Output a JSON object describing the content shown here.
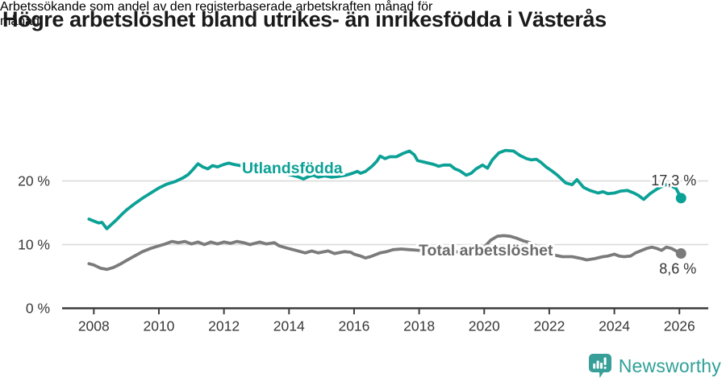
{
  "footer": {
    "brand": "Newsworthy"
  },
  "colors": {
    "teal": "#0CA196",
    "gray": "#7B7B7B",
    "teal_label": "#0CA196",
    "gray_label": "#6B6B6B",
    "grid": "#D8D8D8",
    "axis": "#3D3D3D",
    "tick_text": "#383838",
    "value_text": "#333333",
    "logo": "#379F98"
  },
  "chart_data": {
    "type": "line",
    "title": "Högre arbetslöshet bland utrikes- än inrikesfödda i Västerås",
    "subtitle_lines": [
      "Arbetssökande som andel av den registerbaserade arbetskraften månad för",
      "månad."
    ],
    "xlabel": "",
    "ylabel": "",
    "unit": "%",
    "xlim": [
      2007.0,
      2026.9
    ],
    "ylim": [
      0,
      27
    ],
    "grid": "horizontal",
    "legend_position": "inline-labels",
    "yticks": [
      {
        "value": 0,
        "label": "0 %"
      },
      {
        "value": 10,
        "label": "10 %"
      },
      {
        "value": 20,
        "label": "20 %"
      }
    ],
    "xticks": [
      {
        "value": 2008,
        "label": "2008"
      },
      {
        "value": 2010,
        "label": "2010"
      },
      {
        "value": 2012,
        "label": "2012"
      },
      {
        "value": 2014,
        "label": "2014"
      },
      {
        "value": 2016,
        "label": "2016"
      },
      {
        "value": 2018,
        "label": "2018"
      },
      {
        "value": 2020,
        "label": "2020"
      },
      {
        "value": 2022,
        "label": "2022"
      },
      {
        "value": 2024,
        "label": "2024"
      },
      {
        "value": 2026,
        "label": "2026"
      }
    ],
    "series": [
      {
        "id": "total",
        "name": "Total arbetslöshet",
        "color": "gray",
        "label_color": "gray_label",
        "label_anchor": [
          2020.05,
          8.3
        ],
        "end_label": "8,6 %",
        "end_label_side": "below",
        "points": [
          [
            2007.85,
            7.0
          ],
          [
            2008.0,
            6.8
          ],
          [
            2008.2,
            6.3
          ],
          [
            2008.4,
            6.1
          ],
          [
            2008.6,
            6.4
          ],
          [
            2008.8,
            6.9
          ],
          [
            2009.0,
            7.5
          ],
          [
            2009.25,
            8.2
          ],
          [
            2009.5,
            8.9
          ],
          [
            2009.75,
            9.4
          ],
          [
            2010.0,
            9.8
          ],
          [
            2010.2,
            10.1
          ],
          [
            2010.4,
            10.5
          ],
          [
            2010.6,
            10.3
          ],
          [
            2010.8,
            10.5
          ],
          [
            2011.0,
            10.1
          ],
          [
            2011.2,
            10.4
          ],
          [
            2011.4,
            10.0
          ],
          [
            2011.6,
            10.4
          ],
          [
            2011.8,
            10.1
          ],
          [
            2012.0,
            10.4
          ],
          [
            2012.2,
            10.2
          ],
          [
            2012.4,
            10.5
          ],
          [
            2012.6,
            10.3
          ],
          [
            2012.8,
            10.0
          ],
          [
            2013.1,
            10.4
          ],
          [
            2013.3,
            10.1
          ],
          [
            2013.55,
            10.3
          ],
          [
            2013.7,
            9.8
          ],
          [
            2013.9,
            9.5
          ],
          [
            2014.2,
            9.1
          ],
          [
            2014.5,
            8.7
          ],
          [
            2014.7,
            9.0
          ],
          [
            2014.9,
            8.7
          ],
          [
            2015.2,
            9.0
          ],
          [
            2015.4,
            8.6
          ],
          [
            2015.7,
            8.9
          ],
          [
            2015.9,
            8.8
          ],
          [
            2016.0,
            8.5
          ],
          [
            2016.2,
            8.2
          ],
          [
            2016.35,
            7.9
          ],
          [
            2016.5,
            8.1
          ],
          [
            2016.8,
            8.7
          ],
          [
            2017.0,
            8.9
          ],
          [
            2017.2,
            9.2
          ],
          [
            2017.45,
            9.3
          ],
          [
            2017.7,
            9.2
          ],
          [
            2018.0,
            9.1
          ],
          [
            2018.25,
            9.0
          ],
          [
            2018.5,
            8.9
          ],
          [
            2018.75,
            8.8
          ],
          [
            2019.0,
            8.8
          ],
          [
            2019.25,
            8.9
          ],
          [
            2019.5,
            9.0
          ],
          [
            2019.75,
            9.2
          ],
          [
            2020.0,
            9.6
          ],
          [
            2020.2,
            10.7
          ],
          [
            2020.4,
            11.3
          ],
          [
            2020.6,
            11.4
          ],
          [
            2020.8,
            11.3
          ],
          [
            2021.0,
            11.0
          ],
          [
            2021.2,
            10.6
          ],
          [
            2021.4,
            10.3
          ],
          [
            2021.6,
            9.8
          ],
          [
            2021.8,
            9.2
          ],
          [
            2022.0,
            8.8
          ],
          [
            2022.2,
            8.3
          ],
          [
            2022.4,
            8.1
          ],
          [
            2022.7,
            8.1
          ],
          [
            2023.0,
            7.8
          ],
          [
            2023.15,
            7.6
          ],
          [
            2023.4,
            7.8
          ],
          [
            2023.65,
            8.1
          ],
          [
            2023.8,
            8.2
          ],
          [
            2024.0,
            8.5
          ],
          [
            2024.15,
            8.2
          ],
          [
            2024.3,
            8.1
          ],
          [
            2024.5,
            8.2
          ],
          [
            2024.65,
            8.7
          ],
          [
            2024.8,
            9.0
          ],
          [
            2025.0,
            9.4
          ],
          [
            2025.15,
            9.6
          ],
          [
            2025.3,
            9.4
          ],
          [
            2025.45,
            9.1
          ],
          [
            2025.6,
            9.6
          ],
          [
            2025.75,
            9.4
          ],
          [
            2026.05,
            8.6
          ]
        ]
      },
      {
        "id": "utlandsfodda",
        "name": "Utlandsfödda",
        "color": "teal",
        "label_color": "teal_label",
        "label_anchor": [
          2014.1,
          21.2
        ],
        "end_label": "17,3 %",
        "end_label_side": "above",
        "points": [
          [
            2007.85,
            14.0
          ],
          [
            2008.0,
            13.7
          ],
          [
            2008.15,
            13.4
          ],
          [
            2008.25,
            13.5
          ],
          [
            2008.4,
            12.5
          ],
          [
            2008.55,
            13.2
          ],
          [
            2008.7,
            13.9
          ],
          [
            2008.85,
            14.7
          ],
          [
            2009.0,
            15.4
          ],
          [
            2009.25,
            16.4
          ],
          [
            2009.5,
            17.3
          ],
          [
            2009.75,
            18.1
          ],
          [
            2010.0,
            18.9
          ],
          [
            2010.25,
            19.5
          ],
          [
            2010.5,
            19.9
          ],
          [
            2010.75,
            20.5
          ],
          [
            2010.9,
            21.0
          ],
          [
            2011.05,
            21.8
          ],
          [
            2011.2,
            22.7
          ],
          [
            2011.35,
            22.2
          ],
          [
            2011.5,
            21.9
          ],
          [
            2011.65,
            22.4
          ],
          [
            2011.8,
            22.2
          ],
          [
            2012.0,
            22.6
          ],
          [
            2012.15,
            22.8
          ],
          [
            2012.3,
            22.6
          ],
          [
            2012.5,
            22.4
          ],
          [
            2012.75,
            22.2
          ],
          [
            2013.0,
            22.1
          ],
          [
            2013.25,
            21.9
          ],
          [
            2013.5,
            21.6
          ],
          [
            2013.75,
            21.3
          ],
          [
            2014.0,
            21.0
          ],
          [
            2014.25,
            20.7
          ],
          [
            2014.45,
            20.3
          ],
          [
            2014.6,
            20.7
          ],
          [
            2014.75,
            20.9
          ],
          [
            2014.9,
            20.6
          ],
          [
            2015.1,
            20.8
          ],
          [
            2015.3,
            20.6
          ],
          [
            2015.5,
            20.7
          ],
          [
            2015.75,
            20.9
          ],
          [
            2015.95,
            21.2
          ],
          [
            2016.1,
            21.5
          ],
          [
            2016.2,
            21.2
          ],
          [
            2016.35,
            21.5
          ],
          [
            2016.55,
            22.3
          ],
          [
            2016.7,
            23.1
          ],
          [
            2016.8,
            23.9
          ],
          [
            2016.95,
            23.5
          ],
          [
            2017.1,
            23.8
          ],
          [
            2017.3,
            23.8
          ],
          [
            2017.5,
            24.3
          ],
          [
            2017.7,
            24.7
          ],
          [
            2017.85,
            24.1
          ],
          [
            2017.95,
            23.2
          ],
          [
            2018.2,
            22.9
          ],
          [
            2018.45,
            22.6
          ],
          [
            2018.6,
            22.3
          ],
          [
            2018.75,
            22.5
          ],
          [
            2018.95,
            22.5
          ],
          [
            2019.1,
            21.9
          ],
          [
            2019.25,
            21.6
          ],
          [
            2019.45,
            20.9
          ],
          [
            2019.6,
            21.2
          ],
          [
            2019.75,
            21.9
          ],
          [
            2019.95,
            22.5
          ],
          [
            2020.1,
            22.0
          ],
          [
            2020.25,
            23.3
          ],
          [
            2020.45,
            24.4
          ],
          [
            2020.65,
            24.8
          ],
          [
            2020.9,
            24.7
          ],
          [
            2021.1,
            24.0
          ],
          [
            2021.3,
            23.5
          ],
          [
            2021.45,
            23.3
          ],
          [
            2021.6,
            23.4
          ],
          [
            2021.75,
            22.9
          ],
          [
            2021.9,
            22.2
          ],
          [
            2022.1,
            21.5
          ],
          [
            2022.25,
            20.9
          ],
          [
            2022.5,
            19.7
          ],
          [
            2022.7,
            19.4
          ],
          [
            2022.85,
            20.2
          ],
          [
            2023.05,
            19.0
          ],
          [
            2023.25,
            18.5
          ],
          [
            2023.5,
            18.1
          ],
          [
            2023.65,
            18.3
          ],
          [
            2023.8,
            18.0
          ],
          [
            2024.0,
            18.1
          ],
          [
            2024.2,
            18.4
          ],
          [
            2024.4,
            18.5
          ],
          [
            2024.6,
            18.1
          ],
          [
            2024.75,
            17.7
          ],
          [
            2024.9,
            17.1
          ],
          [
            2025.1,
            18.0
          ],
          [
            2025.3,
            18.7
          ],
          [
            2025.45,
            19.1
          ],
          [
            2025.6,
            19.4
          ],
          [
            2025.75,
            19.2
          ],
          [
            2025.9,
            18.8
          ],
          [
            2026.05,
            17.3
          ]
        ]
      }
    ]
  }
}
